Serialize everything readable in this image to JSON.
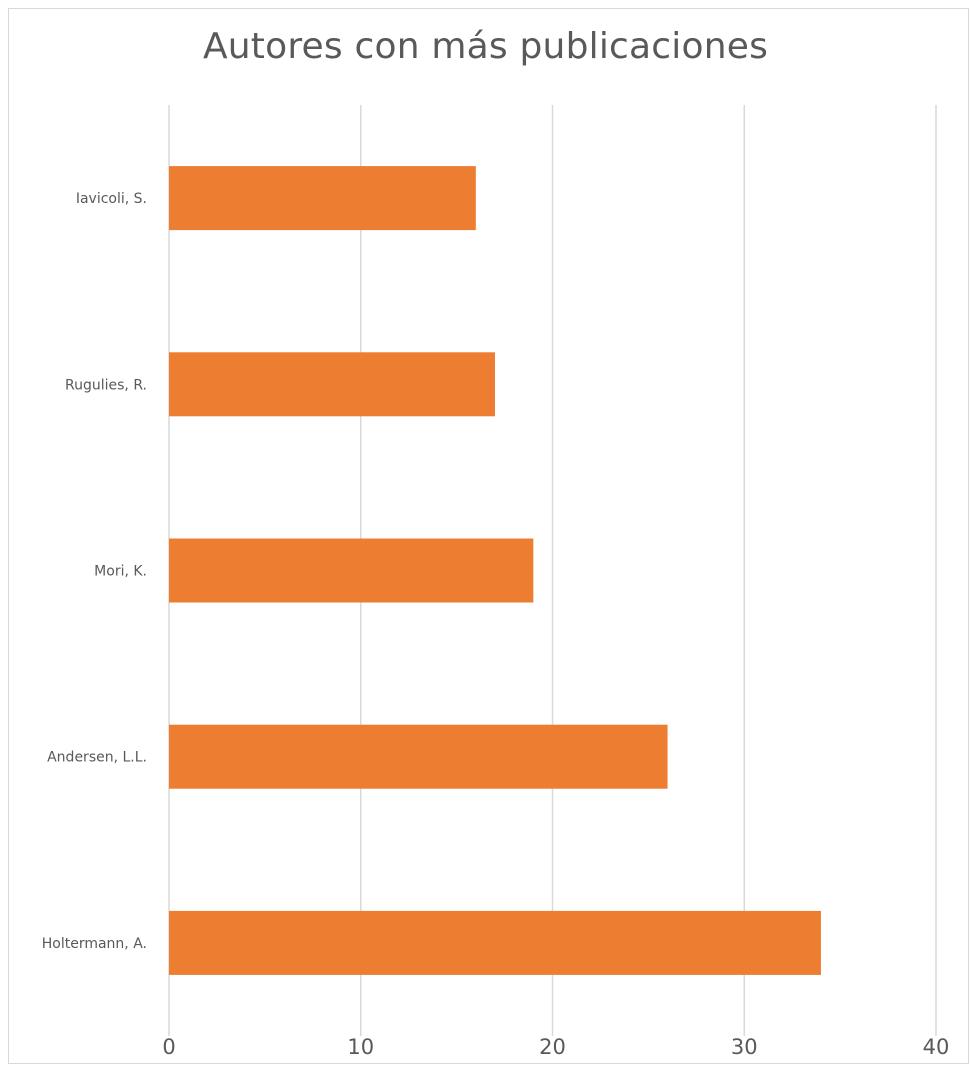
{
  "chart_data": {
    "type": "bar",
    "orientation": "horizontal",
    "title": "Autores con más publicaciones",
    "categories": [
      "Iavicoli, S.",
      "Rugulies, R.",
      "Mori, K.",
      "Andersen, L.L.",
      "Holtermann, A."
    ],
    "values": [
      16,
      17,
      19,
      26,
      34
    ],
    "xlim": [
      0,
      40
    ],
    "x_ticks": [
      0,
      10,
      20,
      30,
      40
    ],
    "grid": "vertical",
    "legend": "none",
    "bar_color": "#ED7D31",
    "grid_color": "#D9D9D9"
  }
}
